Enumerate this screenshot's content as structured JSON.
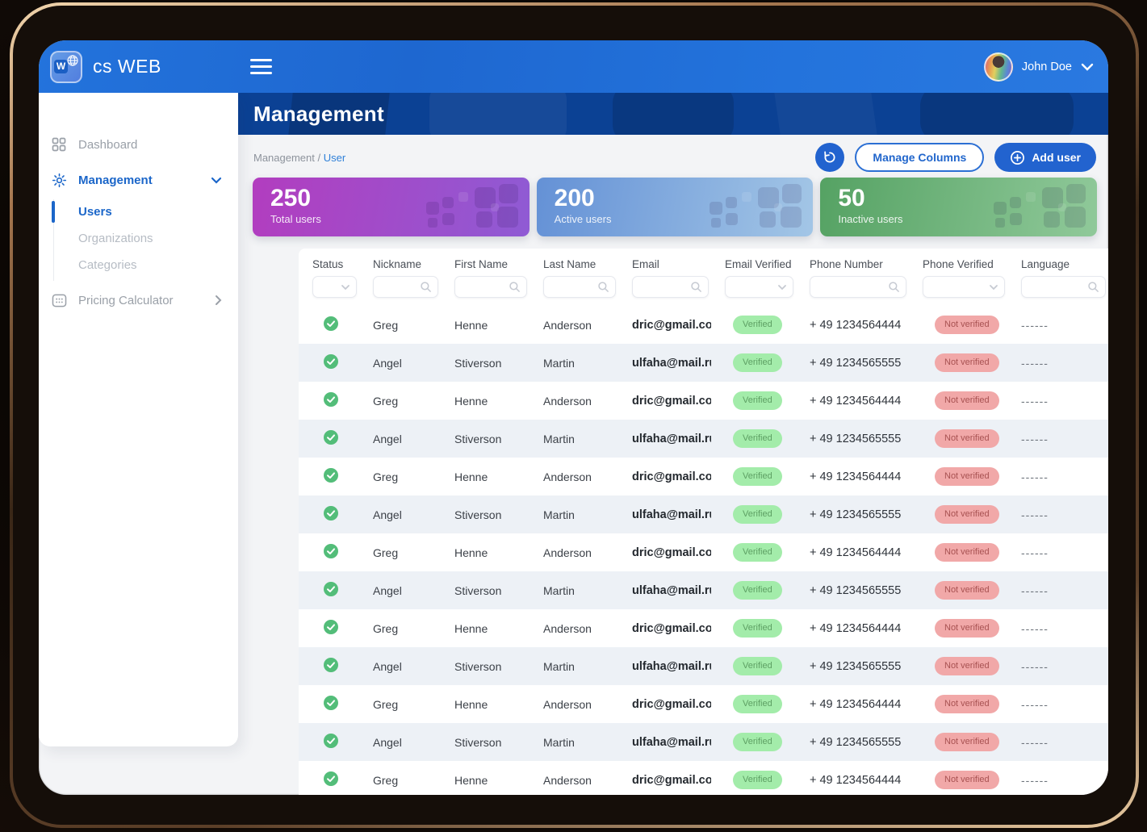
{
  "topbar": {
    "brand": "cs WEB",
    "user_name": "John Doe"
  },
  "sidebar": {
    "dashboard_label": "Dashboard",
    "management_label": "Management",
    "management_children": [
      {
        "label": "Users",
        "active": true
      },
      {
        "label": "Organizations",
        "active": false
      },
      {
        "label": "Categories",
        "active": false
      }
    ],
    "pricing_label": "Pricing Calculator"
  },
  "page": {
    "title": "Management",
    "breadcrumb_root": "Management",
    "breadcrumb_separator": " / ",
    "breadcrumb_current": "User"
  },
  "toolbar": {
    "manage_columns_label": "Manage Columns",
    "add_user_label": "Add user"
  },
  "stats": [
    {
      "value": "250",
      "label": "Total users",
      "gradient_from": "#b23dbf",
      "gradient_to": "#8f5bd4"
    },
    {
      "value": "200",
      "label": "Active users",
      "gradient_from": "#6491d6",
      "gradient_to": "#a3c6e6"
    },
    {
      "value": "50",
      "label": "Inactive users",
      "gradient_from": "#55a263",
      "gradient_to": "#90c99a"
    }
  ],
  "table": {
    "columns": [
      {
        "key": "status",
        "label": "Status",
        "filter": "select"
      },
      {
        "key": "nickname",
        "label": "Nickname",
        "filter": "search"
      },
      {
        "key": "first_name",
        "label": "First Name",
        "filter": "search"
      },
      {
        "key": "last_name",
        "label": "Last Name",
        "filter": "search"
      },
      {
        "key": "email",
        "label": "Email",
        "filter": "search"
      },
      {
        "key": "email_verified",
        "label": "Email Verified",
        "filter": "select"
      },
      {
        "key": "phone_number",
        "label": "Phone Number",
        "filter": "search"
      },
      {
        "key": "phone_verified",
        "label": "Phone Verified",
        "filter": "select"
      },
      {
        "key": "language",
        "label": "Language",
        "filter": "search"
      }
    ],
    "rows": [
      {
        "status": "verified",
        "nickname": "Greg",
        "first_name": "Henne",
        "last_name": "Anderson",
        "email": "dric@gmail.com",
        "email_verified": "Verified",
        "phone_number": "+ 49 1234564444",
        "phone_verified": "Not verified",
        "language": "------"
      },
      {
        "status": "verified",
        "nickname": "Angel",
        "first_name": "Stiverson",
        "last_name": "Martin",
        "email": "ulfaha@mail.ru",
        "email_verified": "Verified",
        "phone_number": "+ 49 1234565555",
        "phone_verified": "Not verified",
        "language": "------"
      },
      {
        "status": "verified",
        "nickname": "Greg",
        "first_name": "Henne",
        "last_name": "Anderson",
        "email": "dric@gmail.com",
        "email_verified": "Verified",
        "phone_number": "+ 49 1234564444",
        "phone_verified": "Not verified",
        "language": "------"
      },
      {
        "status": "verified",
        "nickname": "Angel",
        "first_name": "Stiverson",
        "last_name": "Martin",
        "email": "ulfaha@mail.ru",
        "email_verified": "Verified",
        "phone_number": "+ 49 1234565555",
        "phone_verified": "Not verified",
        "language": "------"
      },
      {
        "status": "verified",
        "nickname": "Greg",
        "first_name": "Henne",
        "last_name": "Anderson",
        "email": "dric@gmail.com",
        "email_verified": "Verified",
        "phone_number": "+ 49 1234564444",
        "phone_verified": "Not verified",
        "language": "------"
      },
      {
        "status": "verified",
        "nickname": "Angel",
        "first_name": "Stiverson",
        "last_name": "Martin",
        "email": "ulfaha@mail.ru",
        "email_verified": "Verified",
        "phone_number": "+ 49 1234565555",
        "phone_verified": "Not verified",
        "language": "------"
      },
      {
        "status": "verified",
        "nickname": "Greg",
        "first_name": "Henne",
        "last_name": "Anderson",
        "email": "dric@gmail.com",
        "email_verified": "Verified",
        "phone_number": "+ 49 1234564444",
        "phone_verified": "Not verified",
        "language": "------"
      },
      {
        "status": "verified",
        "nickname": "Angel",
        "first_name": "Stiverson",
        "last_name": "Martin",
        "email": "ulfaha@mail.ru",
        "email_verified": "Verified",
        "phone_number": "+ 49 1234565555",
        "phone_verified": "Not verified",
        "language": "------"
      },
      {
        "status": "verified",
        "nickname": "Greg",
        "first_name": "Henne",
        "last_name": "Anderson",
        "email": "dric@gmail.com",
        "email_verified": "Verified",
        "phone_number": "+ 49 1234564444",
        "phone_verified": "Not verified",
        "language": "------"
      },
      {
        "status": "verified",
        "nickname": "Angel",
        "first_name": "Stiverson",
        "last_name": "Martin",
        "email": "ulfaha@mail.ru",
        "email_verified": "Verified",
        "phone_number": "+ 49 1234565555",
        "phone_verified": "Not verified",
        "language": "------"
      },
      {
        "status": "verified",
        "nickname": "Greg",
        "first_name": "Henne",
        "last_name": "Anderson",
        "email": "dric@gmail.com",
        "email_verified": "Verified",
        "phone_number": "+ 49 1234564444",
        "phone_verified": "Not verified",
        "language": "------"
      },
      {
        "status": "verified",
        "nickname": "Angel",
        "first_name": "Stiverson",
        "last_name": "Martin",
        "email": "ulfaha@mail.ru",
        "email_verified": "Verified",
        "phone_number": "+ 49 1234565555",
        "phone_verified": "Not verified",
        "language": "------"
      },
      {
        "status": "verified",
        "nickname": "Greg",
        "first_name": "Henne",
        "last_name": "Anderson",
        "email": "dric@gmail.com",
        "email_verified": "Verified",
        "phone_number": "+ 49 1234564444",
        "phone_verified": "Not verified",
        "language": "------"
      }
    ]
  },
  "colors": {
    "topbar_blue": "#2373dc",
    "title_bar_navy": "#0b4194",
    "accent_blue": "#2263cf",
    "breadcrumb_link_blue": "#2f80d8",
    "sidebar_active_blue": "#1b66c9",
    "row_alt_background": "#edf1f6",
    "verified_badge_bg": "#a3ecaa",
    "verified_badge_text": "#5d9f63",
    "not_verified_badge_bg": "#f1a8a8",
    "not_verified_badge_text": "#a85252",
    "status_check_green": "#53bd79"
  }
}
